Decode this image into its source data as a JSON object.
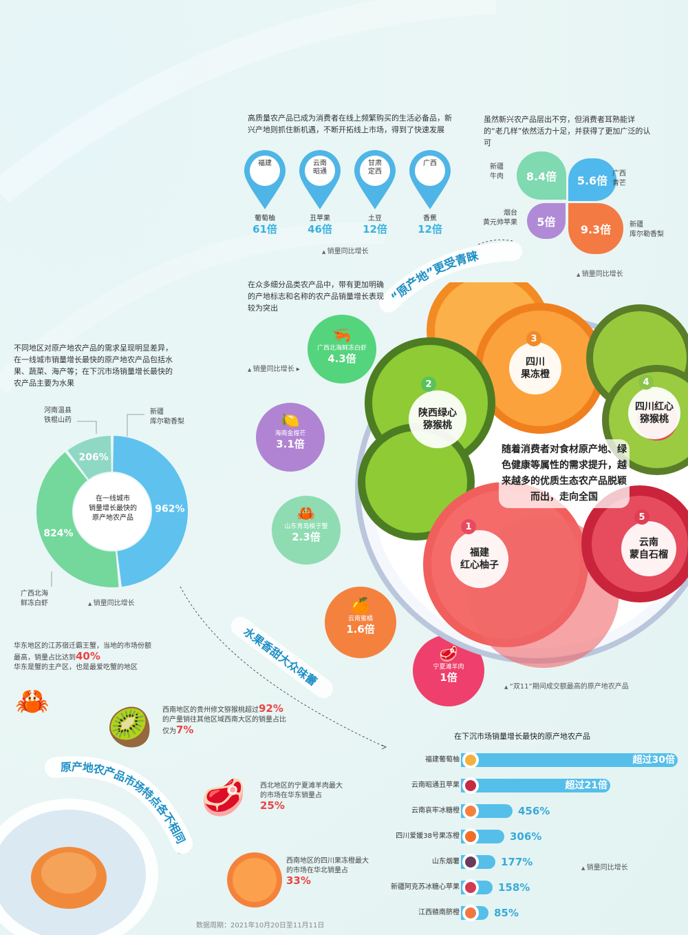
{
  "top_center": {
    "intro": "高质量农产品已成为消费者在线上频繁购买的生活必备品，新兴产地则抓住新机遇，不断开拓线上市场，得到了快速发展",
    "pins": [
      {
        "place": "福建",
        "product": "葡萄柚",
        "value": "61倍"
      },
      {
        "place": "云南\n昭通",
        "product": "丑苹果",
        "value": "46倍"
      },
      {
        "place": "甘肃\n定西",
        "product": "土豆",
        "value": "12倍"
      },
      {
        "place": "广西",
        "product": "香蕉",
        "value": "12倍"
      }
    ],
    "note": "销量同比增长"
  },
  "top_right": {
    "intro": "虽然新兴农产品层出不穷，但消费者耳熟能详的“老几样”依然活力十足，并获得了更加广泛的认可",
    "petals": [
      {
        "label": "新疆\n牛肉",
        "value": "8.4倍",
        "color": "#7fd9b1"
      },
      {
        "label": "广西\n青芒",
        "value": "5.6倍",
        "color": "#4fb8ec"
      },
      {
        "label": "烟台\n黄元帅苹果",
        "value": "5倍",
        "color": "#b08ad6"
      },
      {
        "label": "新疆\n库尔勒香梨",
        "value": "9.3倍",
        "color": "#f47a43"
      }
    ],
    "note": "销量同比增长"
  },
  "ribbon_yuanchandi": "“原产地”更受青睐",
  "mid_left": {
    "intro": "在众多细分品类农产品中，带有更加明确的产地标志和名称的农产品销量增长表现较为突出",
    "note": "销量同比增长",
    "bubbles": [
      {
        "label": "广西北海鲜冻白虾",
        "value": "4.3倍",
        "color": "#54d47d",
        "icon": "shrimp-icon"
      },
      {
        "label": "海南金煌芒",
        "value": "3.1倍",
        "color": "#b084d3",
        "icon": "mango-icon"
      },
      {
        "label": "山东青岛梭子蟹",
        "value": "2.3倍",
        "color": "#8fdcb2",
        "icon": "crab-icon"
      },
      {
        "label": "云南蜜橘",
        "value": "1.6倍",
        "color": "#f5813f",
        "icon": "orange-icon"
      },
      {
        "label": "宁夏滩羊肉",
        "value": "1倍",
        "color": "#ef3f6c",
        "icon": "meat-icon"
      }
    ]
  },
  "plate": {
    "center_text": "随着消费者对食材原产地、绿色健康等属性的需求提升，越来越多的优质生态农产品脱颖而出，走向全国",
    "fruits": [
      {
        "num": "1",
        "name": "福建\n红心柚子",
        "color": "#e84a5f"
      },
      {
        "num": "2",
        "name": "陕西绿心\n猕猴桃",
        "color": "#59c25a"
      },
      {
        "num": "3",
        "name": "四川\n果冻橙",
        "color": "#f08a2a"
      },
      {
        "num": "4",
        "name": "四川红心\n猕猴桃",
        "color": "#8bc34a"
      },
      {
        "num": "5",
        "name": "云南\n蒙自石榴",
        "color": "#e03e52"
      }
    ],
    "caption": "“双11”期间成交额最高的原产地农产品"
  },
  "donut_section": {
    "intro": "不同地区对原产地农产品的需求呈现明显差异，在一线城市销量增长最快的原产地农产品包括水果、蔬菜、海产等；在下沉市场销量增长最快的农产品主要为水果",
    "center": "在一线城市\n销量增长最快的\n原产地农产品",
    "slice_labels": [
      {
        "name": "新疆\n库尔勒香梨",
        "value": "962%"
      },
      {
        "name": "广西北海\n鲜冻白虾",
        "value": "824%"
      },
      {
        "name": "河南温县\n铁棍山药",
        "value": "206%"
      }
    ],
    "note": "销量同比增长"
  },
  "ribbon_sweet": "水果香甜大众味蕾",
  "ribbon_market": "原产地农产品市场特点各不相同",
  "market_facts": [
    {
      "text_a": "华东地区的江苏宿迁霸王蟹，当地的市场份额最高，销量占比达到",
      "highlight": "40%",
      "text_b": "华东是蟹的主产区，也是最爱吃蟹的地区"
    },
    {
      "text_a": "西南地区的贵州修文猕猴桃超过",
      "highlight": "92%",
      "text_b": "的产量销往其他区域西南大区的销量占比仅为",
      "highlight2": "7%"
    },
    {
      "text_a": "西北地区的宁夏滩羊肉最大的市场在华东销量占",
      "highlight": "25%"
    },
    {
      "text_a": "西南地区的四川果冻橙最大的市场在华北销量占",
      "highlight": "33%"
    }
  ],
  "footer": "数据周期：2021年10月20日至11月11日",
  "chart_data": [
    {
      "type": "pie",
      "title": "在一线城市销量增长最快的原产地农产品",
      "categories": [
        "新疆库尔勒香梨",
        "广西北海鲜冻白虾",
        "河南温县铁棍山药"
      ],
      "values": [
        962,
        824,
        206
      ],
      "unit": "%",
      "note": "销量同比增长"
    },
    {
      "type": "bar",
      "title": "在下沉市场销量增长最快的原产地农产品",
      "categories": [
        "福建葡萄柚",
        "云南昭通丑苹果",
        "云南哀牢冰糖橙",
        "四川爱媛38号果冻橙",
        "山东烟薯",
        "新疆阿克苏冰糖心苹果",
        "江西赣南脐橙"
      ],
      "values": [
        3000,
        2100,
        456,
        306,
        177,
        158,
        85
      ],
      "labels": [
        "超过30倍",
        "超过21倍",
        "456%",
        "306%",
        "177%",
        "158%",
        "85%"
      ],
      "unit": "%",
      "note": "销量同比增长"
    }
  ]
}
